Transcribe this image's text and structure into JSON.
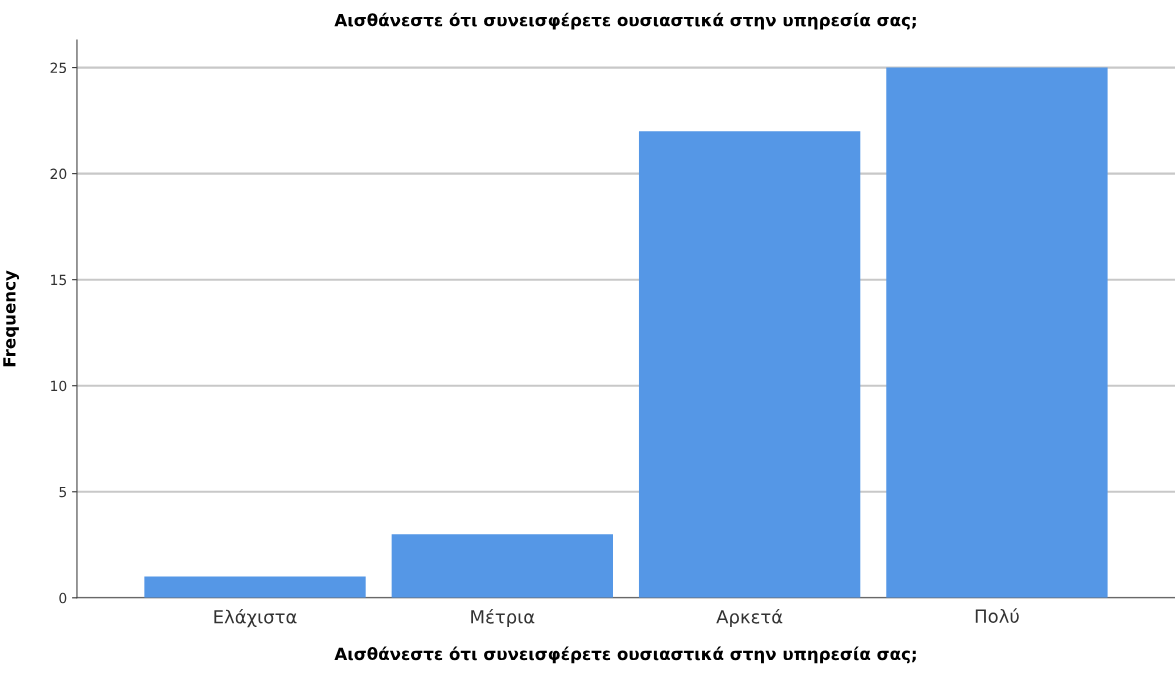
{
  "chart_data": {
    "type": "bar",
    "title": "Αισθάνεστε ότι συνεισφέρετε ουσιαστικά στην υπηρεσία σας;",
    "xlabel": "Αισθάνεστε ότι συνεισφέρετε ουσιαστικά στην υπηρεσία σας;",
    "ylabel": "Frequency",
    "categories": [
      "Ελάχιστα",
      "Μέτρια",
      "Αρκετά",
      "Πολύ"
    ],
    "values": [
      1,
      3,
      22,
      25
    ],
    "color": "#5597e6",
    "ylim": [
      0,
      26.3
    ],
    "yticks": [
      0,
      5,
      10,
      15,
      20,
      25
    ],
    "grid": "y",
    "legend": false
  }
}
